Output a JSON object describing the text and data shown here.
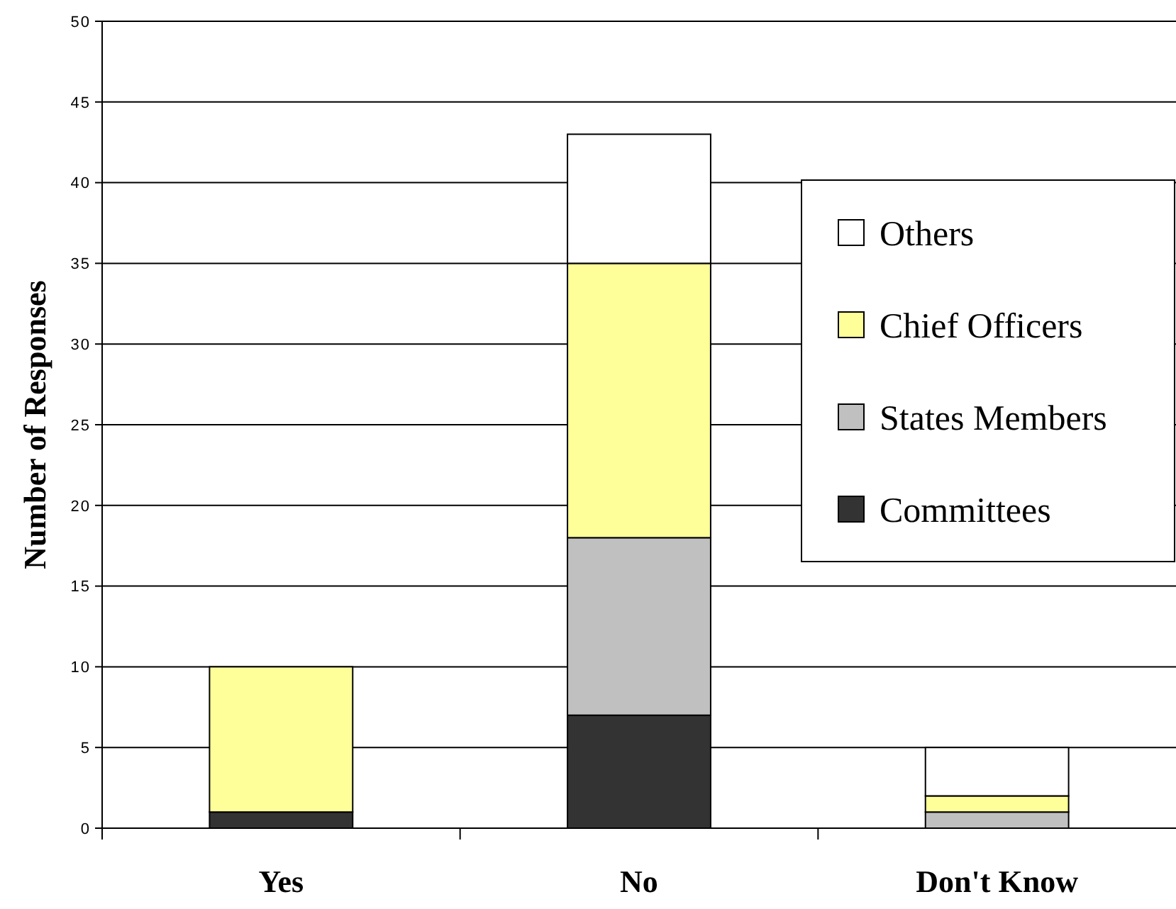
{
  "chart_data": {
    "type": "bar",
    "stacked": true,
    "ylabel": "Number of Responses",
    "categories": [
      "Yes",
      "No",
      "Don't Know"
    ],
    "series": [
      {
        "name": "Committees",
        "color": "#333333",
        "values": [
          1,
          7,
          0
        ]
      },
      {
        "name": "States Members",
        "color": "#c0c0c0",
        "values": [
          0,
          11,
          1
        ]
      },
      {
        "name": "Chief Officers",
        "color": "#ffff99",
        "values": [
          9,
          17,
          1
        ]
      },
      {
        "name": "Others",
        "color": "#ffffff",
        "values": [
          0,
          8,
          3
        ]
      }
    ],
    "ylim": [
      0,
      50
    ],
    "yticks": [
      0,
      5,
      10,
      15,
      20,
      25,
      30,
      35,
      40,
      45,
      50
    ],
    "grid": "y",
    "legend": "right"
  }
}
